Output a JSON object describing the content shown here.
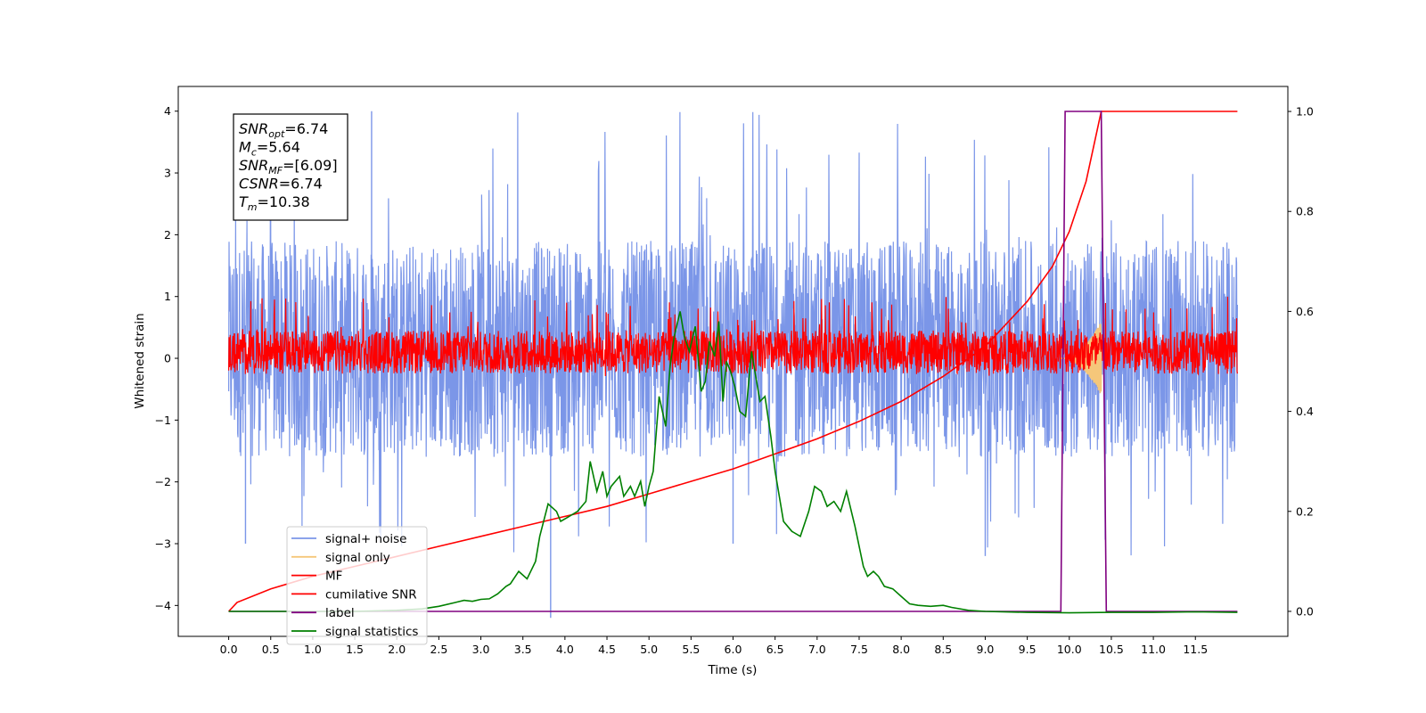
{
  "chart_data": {
    "type": "line",
    "xlabel": "Time (s)",
    "ylabel": "Whitened strain",
    "xlim": [
      -0.6,
      12.6
    ],
    "ylim": [
      -4.5,
      4.4
    ],
    "y2lim": [
      -0.05,
      1.05
    ],
    "x_ticks": [
      0.0,
      0.5,
      1.0,
      1.5,
      2.0,
      2.5,
      3.0,
      3.5,
      4.0,
      4.5,
      5.0,
      5.5,
      6.0,
      6.5,
      7.0,
      7.5,
      8.0,
      8.5,
      9.0,
      9.5,
      10.0,
      10.5,
      11.0,
      11.5
    ],
    "x_tick_labels": [
      "0.0",
      "0.5",
      "1.0",
      "1.5",
      "2.0",
      "2.5",
      "3.0",
      "3.5",
      "4.0",
      "4.5",
      "5.0",
      "5.5",
      "6.0",
      "6.5",
      "7.0",
      "7.5",
      "8.0",
      "8.5",
      "9.0",
      "9.5",
      "10.0",
      "10.5",
      "11.0",
      "11.5"
    ],
    "y_ticks": [
      4,
      3,
      2,
      1,
      0,
      -1,
      -2,
      -3,
      -4
    ],
    "y_tick_labels": [
      "4",
      "3",
      "2",
      "1",
      "0",
      "−1",
      "−2",
      "−3",
      "−4"
    ],
    "y2_ticks": [
      1.0,
      0.8,
      0.6,
      0.4,
      0.2,
      0.0
    ],
    "y2_tick_labels": [
      "1.0",
      "0.8",
      "0.6",
      "0.4",
      "0.2",
      "0.0"
    ],
    "grid": false,
    "legend_position": "lower-left",
    "stats_box": [
      {
        "var": "SNR",
        "sub": "opt",
        "value": "=6.74"
      },
      {
        "var": "M",
        "sub": "c",
        "value": "=5.64"
      },
      {
        "var": "SNR",
        "sub": "MF",
        "value": "=[6.09]"
      },
      {
        "var": "CSNR",
        "sub": "",
        "value": "=6.74"
      },
      {
        "var": "T",
        "sub": "m",
        "value": "=10.38"
      }
    ],
    "series": [
      {
        "name": "signal+ noise",
        "color": "#7b96e8",
        "axis": "left",
        "kind": "noise",
        "x_range": [
          0.0,
          12.0
        ],
        "typical_range": [
          -1.6,
          1.9
        ],
        "extreme_range": [
          -3.2,
          4.0
        ],
        "spike_points": [
          [
            1.7,
            4.0
          ],
          [
            3.83,
            -4.2
          ],
          [
            0.2,
            -3.0
          ],
          [
            6.0,
            -3.0
          ],
          [
            9.0,
            -3.2
          ]
        ]
      },
      {
        "name": "signal only",
        "color": "#f5c77a",
        "axis": "left",
        "kind": "chirp",
        "x_range": [
          9.9,
          10.38
        ],
        "peak_amplitude": 0.6
      },
      {
        "name": "MF",
        "color": "#ff0000",
        "axis": "left",
        "kind": "noise",
        "x_range": [
          0.0,
          12.0
        ],
        "typical_range": [
          -0.25,
          0.45
        ],
        "extreme_range": [
          -0.3,
          1.0
        ]
      },
      {
        "name": "cumilative SNR",
        "color": "#ff0000",
        "axis": "right",
        "x": [
          0.0,
          0.1,
          0.5,
          1.0,
          1.5,
          2.0,
          2.5,
          3.0,
          3.5,
          4.0,
          4.5,
          5.0,
          5.5,
          6.0,
          6.5,
          7.0,
          7.5,
          8.0,
          8.5,
          9.0,
          9.5,
          9.8,
          10.0,
          10.2,
          10.38,
          11.0,
          12.0
        ],
        "values": [
          0.0,
          0.018,
          0.045,
          0.07,
          0.09,
          0.11,
          0.13,
          0.15,
          0.17,
          0.19,
          0.21,
          0.235,
          0.26,
          0.285,
          0.315,
          0.345,
          0.38,
          0.42,
          0.47,
          0.53,
          0.62,
          0.69,
          0.76,
          0.86,
          1.0,
          1.0,
          1.0
        ]
      },
      {
        "name": "label",
        "color": "#800080",
        "axis": "right",
        "x": [
          0.0,
          9.9,
          9.95,
          10.38,
          10.44,
          12.0
        ],
        "values": [
          0.0,
          0.0,
          1.0,
          1.0,
          0.0,
          0.0
        ]
      },
      {
        "name": "signal statistics",
        "color": "#008000",
        "axis": "right",
        "x": [
          0.0,
          0.5,
          1.0,
          1.5,
          2.0,
          2.3,
          2.5,
          2.7,
          2.8,
          2.9,
          3.0,
          3.1,
          3.2,
          3.3,
          3.35,
          3.45,
          3.55,
          3.65,
          3.7,
          3.8,
          3.9,
          3.95,
          4.05,
          4.15,
          4.25,
          4.3,
          4.38,
          4.45,
          4.5,
          4.55,
          4.65,
          4.7,
          4.78,
          4.83,
          4.9,
          4.95,
          5.0,
          5.05,
          5.12,
          5.2,
          5.25,
          5.3,
          5.37,
          5.42,
          5.48,
          5.55,
          5.62,
          5.67,
          5.72,
          5.78,
          5.83,
          5.88,
          5.92,
          5.97,
          6.02,
          6.08,
          6.15,
          6.22,
          6.32,
          6.38,
          6.45,
          6.5,
          6.6,
          6.7,
          6.8,
          6.9,
          6.97,
          7.05,
          7.12,
          7.2,
          7.28,
          7.35,
          7.45,
          7.55,
          7.6,
          7.67,
          7.73,
          7.8,
          7.9,
          8.0,
          8.1,
          8.2,
          8.35,
          8.5,
          8.6,
          8.8,
          9.0,
          9.5,
          10.0,
          10.5,
          11.0,
          11.5,
          12.0
        ],
        "values": [
          0.0,
          0.0,
          0.0,
          0.0,
          0.002,
          0.005,
          0.01,
          0.018,
          0.022,
          0.02,
          0.024,
          0.025,
          0.035,
          0.05,
          0.055,
          0.08,
          0.065,
          0.1,
          0.15,
          0.215,
          0.2,
          0.18,
          0.19,
          0.2,
          0.22,
          0.3,
          0.24,
          0.28,
          0.23,
          0.25,
          0.27,
          0.23,
          0.25,
          0.23,
          0.26,
          0.21,
          0.25,
          0.28,
          0.43,
          0.37,
          0.49,
          0.55,
          0.6,
          0.55,
          0.52,
          0.57,
          0.44,
          0.46,
          0.54,
          0.51,
          0.58,
          0.42,
          0.5,
          0.48,
          0.45,
          0.4,
          0.39,
          0.52,
          0.42,
          0.43,
          0.35,
          0.28,
          0.18,
          0.16,
          0.15,
          0.2,
          0.25,
          0.24,
          0.21,
          0.22,
          0.2,
          0.24,
          0.17,
          0.09,
          0.07,
          0.08,
          0.07,
          0.05,
          0.045,
          0.03,
          0.015,
          0.012,
          0.01,
          0.012,
          0.008,
          0.002,
          0.0,
          -0.002,
          -0.003,
          -0.002,
          -0.002,
          -0.001,
          -0.002
        ]
      }
    ]
  }
}
